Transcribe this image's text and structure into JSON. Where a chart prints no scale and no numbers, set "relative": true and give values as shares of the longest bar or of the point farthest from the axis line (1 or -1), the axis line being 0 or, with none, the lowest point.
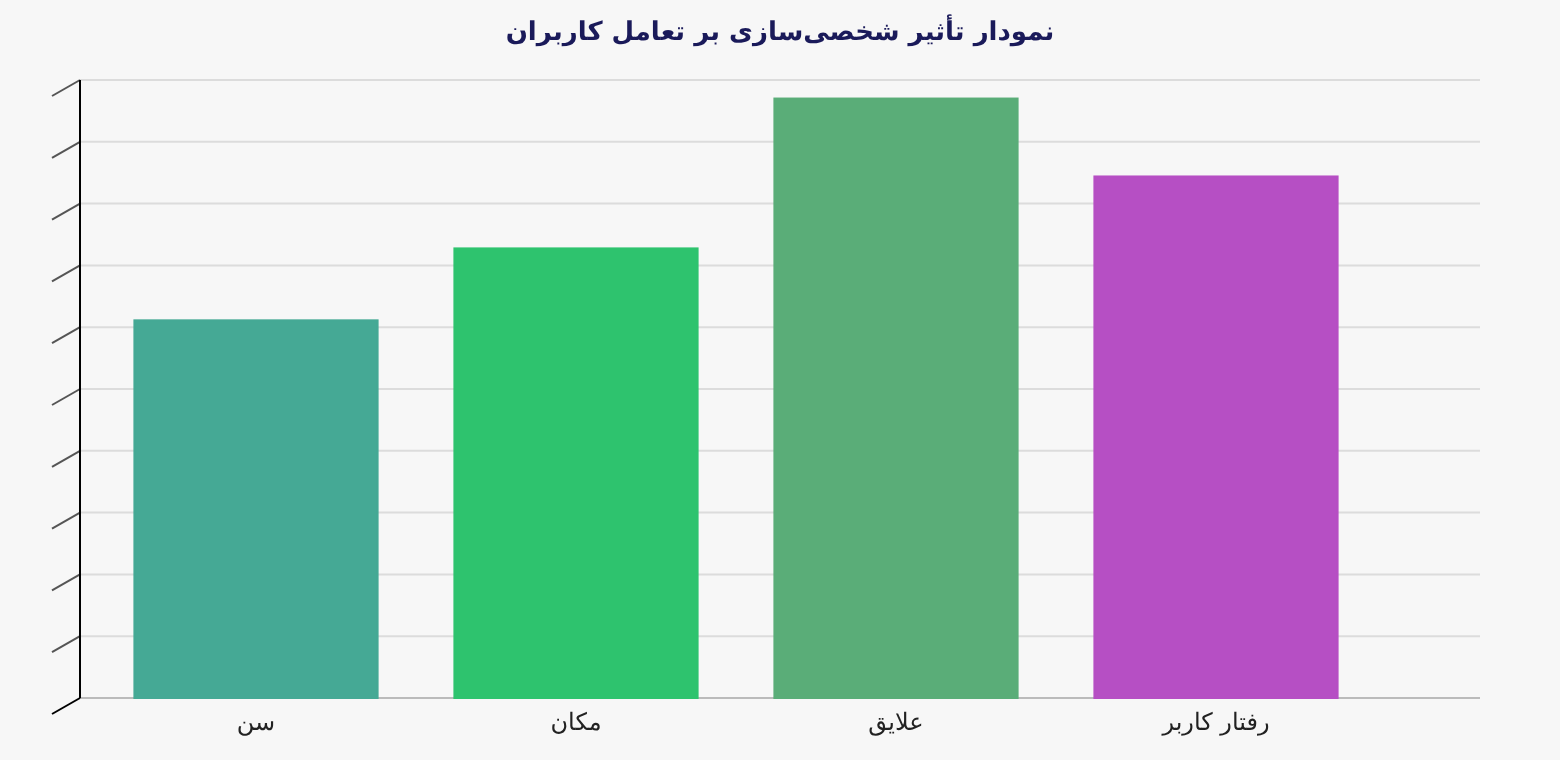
{
  "chart_data": {
    "type": "bar",
    "title": "نمودار تأثیر شخصی‌سازی بر تعامل کاربران",
    "relative": true,
    "grid": true,
    "categories": [
      "سن",
      "مکان",
      "علایق",
      "رفتار کاربر"
    ],
    "values": [
      0.63,
      0.75,
      1,
      0.87
    ],
    "colors": [
      "#45a995",
      "#2ec36e",
      "#5aad78",
      "#b64fc4"
    ]
  }
}
